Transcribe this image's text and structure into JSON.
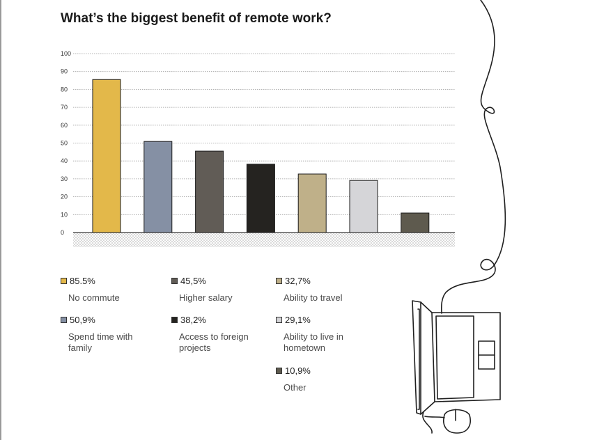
{
  "title": "What’s the biggest benefit of remote work?",
  "colors": {
    "gold": "#e3b84a",
    "slate": "#8590a4",
    "taupe": "#615c56",
    "black": "#252320",
    "sand": "#bfb089",
    "silver": "#d5d5d8",
    "olive": "#5e5a4e",
    "grid": "#9a9a9a"
  },
  "chart_data": {
    "type": "bar",
    "title": "What’s the biggest benefit of remote work?",
    "xlabel": "",
    "ylabel": "",
    "ylim": [
      0,
      100
    ],
    "yticks": [
      0,
      10,
      20,
      30,
      40,
      50,
      60,
      70,
      80,
      90,
      100
    ],
    "grid": true,
    "categories": [
      "No commute",
      "Spend time with family",
      "Higher salary",
      "Access to foreign projects",
      "Ability to travel",
      "Ability to live in hometown",
      "Other"
    ],
    "values": [
      85.5,
      50.9,
      45.5,
      38.2,
      32.7,
      29.1,
      10.9
    ],
    "bar_colors": [
      "#e3b84a",
      "#8590a4",
      "#615c56",
      "#252320",
      "#bfb089",
      "#d5d5d8",
      "#5e5a4e"
    ]
  },
  "legend": [
    {
      "value": "85.5%",
      "label": "No commute",
      "color": "#e3b84a"
    },
    {
      "value": "50,9%",
      "label": "Spend time with family",
      "color": "#8590a4"
    },
    {
      "value": "45,5%",
      "label": "Higher salary",
      "color": "#615c56"
    },
    {
      "value": "38,2%",
      "label": "Access to foreign projects",
      "color": "#252320"
    },
    {
      "value": "32,7%",
      "label": "Ability to travel",
      "color": "#bfb089"
    },
    {
      "value": "29,1%",
      "label": "Ability to live in hometown",
      "color": "#d5d5d8"
    },
    {
      "value": "10,9%",
      "label": "Other",
      "color": "#5e5a4e"
    }
  ],
  "illustration": {
    "icon": "laptop-with-mouse-icon"
  }
}
